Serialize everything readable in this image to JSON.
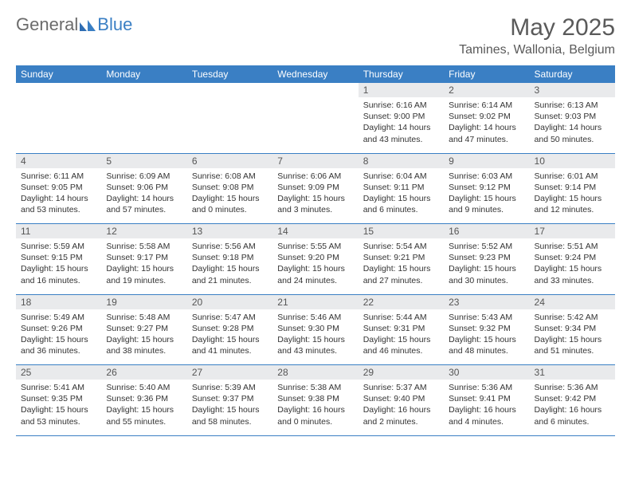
{
  "brand": {
    "general": "General",
    "blue": "Blue"
  },
  "title": "May 2025",
  "location": "Tamines, Wallonia, Belgium",
  "colors": {
    "accent": "#3a7fc4",
    "band": "#e9eaec",
    "text": "#333333"
  },
  "dayHeaders": [
    "Sunday",
    "Monday",
    "Tuesday",
    "Wednesday",
    "Thursday",
    "Friday",
    "Saturday"
  ],
  "weeks": [
    [
      null,
      null,
      null,
      null,
      {
        "n": "1",
        "sr": "6:16 AM",
        "ss": "9:00 PM",
        "dl": "14 hours and 43 minutes."
      },
      {
        "n": "2",
        "sr": "6:14 AM",
        "ss": "9:02 PM",
        "dl": "14 hours and 47 minutes."
      },
      {
        "n": "3",
        "sr": "6:13 AM",
        "ss": "9:03 PM",
        "dl": "14 hours and 50 minutes."
      }
    ],
    [
      {
        "n": "4",
        "sr": "6:11 AM",
        "ss": "9:05 PM",
        "dl": "14 hours and 53 minutes."
      },
      {
        "n": "5",
        "sr": "6:09 AM",
        "ss": "9:06 PM",
        "dl": "14 hours and 57 minutes."
      },
      {
        "n": "6",
        "sr": "6:08 AM",
        "ss": "9:08 PM",
        "dl": "15 hours and 0 minutes."
      },
      {
        "n": "7",
        "sr": "6:06 AM",
        "ss": "9:09 PM",
        "dl": "15 hours and 3 minutes."
      },
      {
        "n": "8",
        "sr": "6:04 AM",
        "ss": "9:11 PM",
        "dl": "15 hours and 6 minutes."
      },
      {
        "n": "9",
        "sr": "6:03 AM",
        "ss": "9:12 PM",
        "dl": "15 hours and 9 minutes."
      },
      {
        "n": "10",
        "sr": "6:01 AM",
        "ss": "9:14 PM",
        "dl": "15 hours and 12 minutes."
      }
    ],
    [
      {
        "n": "11",
        "sr": "5:59 AM",
        "ss": "9:15 PM",
        "dl": "15 hours and 16 minutes."
      },
      {
        "n": "12",
        "sr": "5:58 AM",
        "ss": "9:17 PM",
        "dl": "15 hours and 19 minutes."
      },
      {
        "n": "13",
        "sr": "5:56 AM",
        "ss": "9:18 PM",
        "dl": "15 hours and 21 minutes."
      },
      {
        "n": "14",
        "sr": "5:55 AM",
        "ss": "9:20 PM",
        "dl": "15 hours and 24 minutes."
      },
      {
        "n": "15",
        "sr": "5:54 AM",
        "ss": "9:21 PM",
        "dl": "15 hours and 27 minutes."
      },
      {
        "n": "16",
        "sr": "5:52 AM",
        "ss": "9:23 PM",
        "dl": "15 hours and 30 minutes."
      },
      {
        "n": "17",
        "sr": "5:51 AM",
        "ss": "9:24 PM",
        "dl": "15 hours and 33 minutes."
      }
    ],
    [
      {
        "n": "18",
        "sr": "5:49 AM",
        "ss": "9:26 PM",
        "dl": "15 hours and 36 minutes."
      },
      {
        "n": "19",
        "sr": "5:48 AM",
        "ss": "9:27 PM",
        "dl": "15 hours and 38 minutes."
      },
      {
        "n": "20",
        "sr": "5:47 AM",
        "ss": "9:28 PM",
        "dl": "15 hours and 41 minutes."
      },
      {
        "n": "21",
        "sr": "5:46 AM",
        "ss": "9:30 PM",
        "dl": "15 hours and 43 minutes."
      },
      {
        "n": "22",
        "sr": "5:44 AM",
        "ss": "9:31 PM",
        "dl": "15 hours and 46 minutes."
      },
      {
        "n": "23",
        "sr": "5:43 AM",
        "ss": "9:32 PM",
        "dl": "15 hours and 48 minutes."
      },
      {
        "n": "24",
        "sr": "5:42 AM",
        "ss": "9:34 PM",
        "dl": "15 hours and 51 minutes."
      }
    ],
    [
      {
        "n": "25",
        "sr": "5:41 AM",
        "ss": "9:35 PM",
        "dl": "15 hours and 53 minutes."
      },
      {
        "n": "26",
        "sr": "5:40 AM",
        "ss": "9:36 PM",
        "dl": "15 hours and 55 minutes."
      },
      {
        "n": "27",
        "sr": "5:39 AM",
        "ss": "9:37 PM",
        "dl": "15 hours and 58 minutes."
      },
      {
        "n": "28",
        "sr": "5:38 AM",
        "ss": "9:38 PM",
        "dl": "16 hours and 0 minutes."
      },
      {
        "n": "29",
        "sr": "5:37 AM",
        "ss": "9:40 PM",
        "dl": "16 hours and 2 minutes."
      },
      {
        "n": "30",
        "sr": "5:36 AM",
        "ss": "9:41 PM",
        "dl": "16 hours and 4 minutes."
      },
      {
        "n": "31",
        "sr": "5:36 AM",
        "ss": "9:42 PM",
        "dl": "16 hours and 6 minutes."
      }
    ]
  ],
  "labels": {
    "sunrise": "Sunrise:",
    "sunset": "Sunset:",
    "daylight": "Daylight:"
  }
}
